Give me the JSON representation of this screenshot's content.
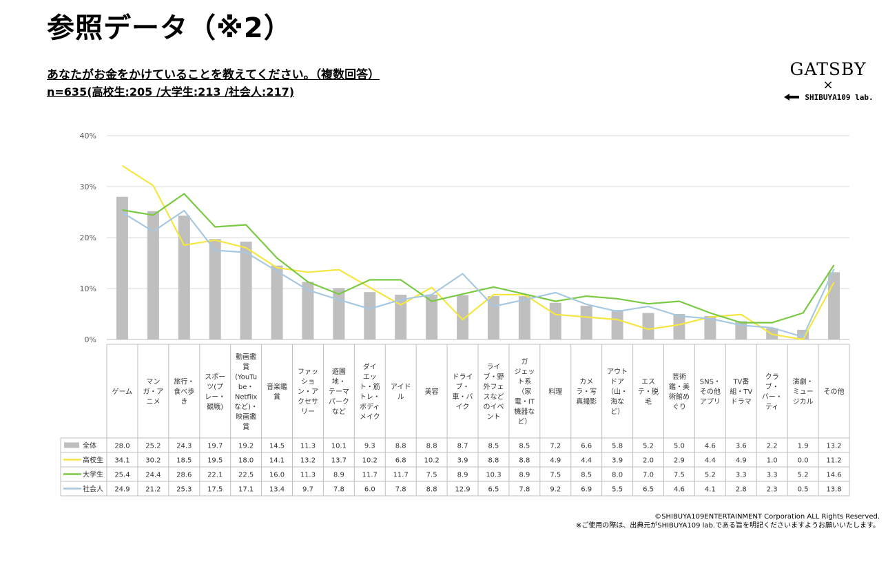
{
  "page": {
    "title": "参照データ（※2）",
    "question": "あなたがお金をかけていることを教えてください。（複数回答）",
    "sample": "n=635(高校生:205 /大学生:213 /社会人:217)",
    "logo": {
      "brand": "GATSBY",
      "cross": "×",
      "partner": "SHIBUYA109 lab."
    },
    "footer": {
      "line1": "©SHIBUYA109ENTERTAINMENT Corporation ALL Rights Reserved.",
      "line2": "※ご使用の際は、出典元がSHIBUYA109 lab.である旨を明記くださいますようお願いいたします。"
    }
  },
  "chart_data": {
    "type": "bar",
    "ylim": [
      0,
      40
    ],
    "yticks": [
      "0%",
      "10%",
      "20%",
      "30%",
      "40%"
    ],
    "grid": true,
    "categories": [
      [
        "ゲーム"
      ],
      [
        "マン",
        "ガ・ア",
        "ニメ"
      ],
      [
        "旅行・",
        "食べ歩",
        "き"
      ],
      [
        "スポー",
        "ツ(プ",
        "レー・",
        "観戦)"
      ],
      [
        "動画鑑",
        "賞",
        "(YouTu",
        "be・",
        "Netflix",
        "など)・",
        "映画鑑",
        "賞"
      ],
      [
        "音楽鑑",
        "賞"
      ],
      [
        "ファッ",
        "ショ",
        "ン・ア",
        "クセサ",
        "リー"
      ],
      [
        "遊園",
        "地・",
        "テーマ",
        "パーク",
        "など"
      ],
      [
        "ダイ",
        "エッ",
        "ト・筋",
        "トレ・",
        "ボディ",
        "メイク"
      ],
      [
        "アイド",
        "ル"
      ],
      [
        "美容"
      ],
      [
        "ドライ",
        "ブ・",
        "車・バ",
        "イク"
      ],
      [
        "ライ",
        "ブ・野",
        "外フェ",
        "スなど",
        "のイベ",
        "ント"
      ],
      [
        "ガ",
        "ジェッ",
        "ト系",
        "（家",
        "電・IT",
        "機器な",
        "ど）"
      ],
      [
        "料理"
      ],
      [
        "カメ",
        "ラ・写",
        "真撮影"
      ],
      [
        "アウト",
        "ドア",
        "（山・",
        "海な",
        "ど）"
      ],
      [
        "エス",
        "テ・脱",
        "毛"
      ],
      [
        "芸術",
        "鑑・美",
        "術館め",
        "ぐり"
      ],
      [
        "SNS・",
        "その他",
        "アプリ"
      ],
      [
        "TV番",
        "組・TV",
        "ドラマ"
      ],
      [
        "クラ",
        "ブ・",
        "バー・",
        "ティ"
      ],
      [
        "演劇・",
        "ミュー",
        "ジカル"
      ],
      [
        "その他"
      ]
    ],
    "series": [
      {
        "name": "全体",
        "kind": "bar",
        "color": "#bfbfbf",
        "values": [
          28.0,
          25.2,
          24.3,
          19.7,
          19.2,
          14.5,
          11.3,
          10.1,
          9.3,
          8.8,
          8.8,
          8.7,
          8.5,
          8.5,
          7.2,
          6.6,
          5.8,
          5.2,
          5.0,
          4.6,
          3.6,
          2.2,
          1.9,
          13.2
        ]
      },
      {
        "name": "高校生",
        "kind": "line",
        "color": "#f5e642",
        "values": [
          34.1,
          30.2,
          18.5,
          19.5,
          18.0,
          14.1,
          13.2,
          13.7,
          10.2,
          6.8,
          10.2,
          3.9,
          8.8,
          8.8,
          4.9,
          4.4,
          3.9,
          2.0,
          2.9,
          4.4,
          4.9,
          1.0,
          0.0,
          11.2
        ]
      },
      {
        "name": "大学生",
        "kind": "line",
        "color": "#7ac943",
        "values": [
          25.4,
          24.4,
          28.6,
          22.1,
          22.5,
          16.0,
          11.3,
          8.9,
          11.7,
          11.7,
          7.5,
          8.9,
          10.3,
          8.9,
          7.5,
          8.5,
          8.0,
          7.0,
          7.5,
          5.2,
          3.3,
          3.3,
          5.2,
          14.6
        ]
      },
      {
        "name": "社会人",
        "kind": "line",
        "color": "#a6c8e0",
        "values": [
          24.9,
          21.2,
          25.3,
          17.5,
          17.1,
          13.4,
          9.7,
          7.8,
          6.0,
          7.8,
          8.8,
          12.9,
          6.5,
          7.8,
          9.2,
          6.9,
          5.5,
          6.5,
          4.6,
          4.1,
          2.8,
          2.3,
          0.5,
          13.8
        ]
      }
    ]
  }
}
